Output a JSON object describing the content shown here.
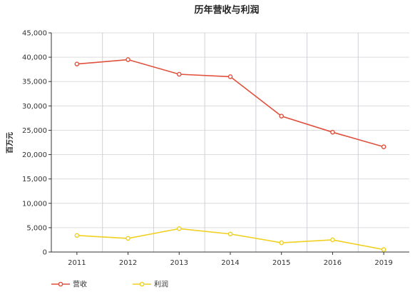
{
  "chart_data": {
    "type": "line",
    "title": "历年营收与利润",
    "ylabel": "百万元",
    "xlabel": "",
    "categories": [
      "2011",
      "2012",
      "2013",
      "2014",
      "2015",
      "2016",
      "2019"
    ],
    "ylim": [
      0,
      45000
    ],
    "yticks": [
      "0",
      "5,000",
      "10,000",
      "15,000",
      "20,000",
      "25,000",
      "30,000",
      "35,000",
      "40,000",
      "45,000"
    ],
    "ytick_values": [
      0,
      5000,
      10000,
      15000,
      20000,
      25000,
      30000,
      35000,
      40000,
      45000
    ],
    "grid": true,
    "legend_position": "bottom-left",
    "series": [
      {
        "name": "营收",
        "color": "#e0503c",
        "values": [
          38600,
          39500,
          36500,
          36000,
          27900,
          24600,
          21600
        ]
      },
      {
        "name": "利润",
        "color": "#f0d020",
        "values": [
          3400,
          2800,
          4800,
          3700,
          1900,
          2500,
          500
        ]
      }
    ]
  }
}
